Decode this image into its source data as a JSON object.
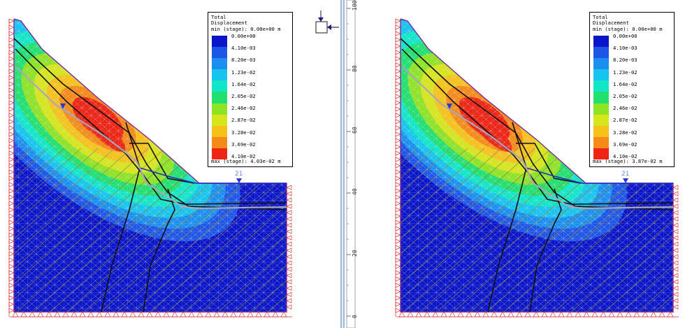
{
  "legend_title": [
    "Total",
    "Displacement",
    "min (stage): 0.00e+00 m"
  ],
  "legend_labels": [
    "0.00e+00",
    "4.10e-03",
    "8.20e-03",
    "1.23e-02",
    "1.64e-02",
    "2.05e-02",
    "2.46e-02",
    "2.87e-02",
    "3.28e-02",
    "3.69e-02",
    "4.10e-02"
  ],
  "legend_colors": [
    "#0a14c8",
    "#1d55e6",
    "#1b8ff0",
    "#16c4ee",
    "#12e6c8",
    "#22e070",
    "#8ee424",
    "#d7e61a",
    "#f6c21a",
    "#f58a18",
    "#ee2414"
  ],
  "views": [
    {
      "name": "left",
      "max_label": "max (stage): 4.03e-02 m",
      "water_label": "21"
    },
    {
      "name": "right",
      "max_label": "max (stage): 3.87e-02 m",
      "water_label": "21"
    }
  ],
  "ruler_ticks": [
    "100",
    "80",
    "60",
    "40",
    "20",
    "0"
  ],
  "colors": {
    "mesh": "#c9c9d6",
    "outline": "#7a2a9a",
    "support": "#e03030",
    "joint": "#101010",
    "water": "#2030c0",
    "gray_line": "#a8a8b8"
  }
}
